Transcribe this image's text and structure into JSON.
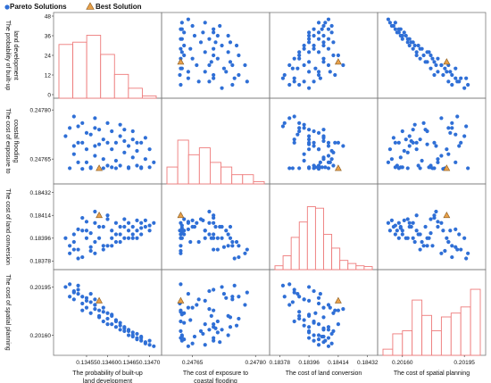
{
  "chart_data": {
    "type": "scatter",
    "legend": {
      "placement": "top-left",
      "entries": [
        {
          "name": "Pareto Solutions",
          "marker": "circle",
          "color": "#2f6fd6"
        },
        {
          "name": "Best Solution",
          "marker": "triangle",
          "color": "#e8a04a"
        }
      ]
    },
    "colors": {
      "pareto": "#2f6fd6",
      "best": "#e8a04a",
      "best_edge": "#8a5a1a",
      "hist_edge": "#ee7b7b",
      "grid": "#7a7a7a"
    },
    "variables": [
      {
        "key": "v1",
        "label_lines": [
          "The probability of built-up",
          "land development"
        ],
        "range": [
          0.13448,
          0.13472
        ],
        "ticks": [
          "0.13455",
          "0.13460",
          "0.13465",
          "0.13470"
        ],
        "tick_values": [
          0.13455,
          0.1346,
          0.13465,
          0.1347
        ]
      },
      {
        "key": "v2",
        "label_lines": [
          "The cost of exposure to",
          "coastal flooding"
        ],
        "range": [
          0.247585,
          0.247825
        ],
        "ticks": [
          "0.24765",
          "0.24780"
        ],
        "tick_values": [
          0.24765,
          0.2478
        ]
      },
      {
        "key": "v3",
        "label_lines": [
          "The cost of land conversion"
        ],
        "range": [
          0.18374,
          0.18436
        ],
        "ticks": [
          "0.18378",
          "0.18396",
          "0.18414",
          "0.18432"
        ],
        "tick_values": [
          0.18378,
          0.18396,
          0.18414,
          0.18432
        ]
      },
      {
        "key": "v4",
        "label_lines": [
          "The cost of spatial planning"
        ],
        "range": [
          0.20148,
          0.20205
        ],
        "ticks": [
          "0.20160",
          "0.20195"
        ],
        "tick_values": [
          0.2016,
          0.20195
        ]
      }
    ],
    "row_labels": [
      [
        "The probability of built-up",
        "land development"
      ],
      [
        "The cost of exposure to",
        "coastal flooding"
      ],
      [
        "The cost of land conversion"
      ],
      [
        "The cost of spatial planning"
      ]
    ],
    "y_ticks": [
      {
        "labels": [
          "0",
          "12",
          "24",
          "36",
          "48"
        ],
        "values": [
          0,
          12,
          24,
          36,
          48
        ],
        "range": [
          0,
          48
        ]
      },
      {
        "labels": [
          "0.24765",
          "0.24780"
        ],
        "values": [
          0.24765,
          0.2478
        ],
        "range": [
          0.247585,
          0.247825
        ]
      },
      {
        "labels": [
          "0.18378",
          "0.18396",
          "0.18414",
          "0.18432"
        ],
        "values": [
          0.18378,
          0.18396,
          0.18414,
          0.18432
        ],
        "range": [
          0.18374,
          0.18436
        ]
      },
      {
        "labels": [
          "0.20160",
          "0.20195"
        ],
        "values": [
          0.2016,
          0.20195
        ],
        "range": [
          0.20148,
          0.20205
        ]
      }
    ],
    "histograms": [
      {
        "variable": "v1",
        "relative_heights": [
          0.7,
          0.73,
          0.82,
          0.57,
          0.31,
          0.13,
          0.03
        ]
      },
      {
        "variable": "v2",
        "relative_heights": [
          0.22,
          0.57,
          0.38,
          0.47,
          0.28,
          0.22,
          0.12,
          0.12,
          0.03
        ]
      },
      {
        "variable": "v3",
        "relative_heights": [
          0.05,
          0.18,
          0.42,
          0.62,
          0.82,
          0.8,
          0.46,
          0.28,
          0.12,
          0.08,
          0.05,
          0.04
        ]
      },
      {
        "variable": "v4",
        "relative_heights": [
          0.08,
          0.28,
          0.32,
          0.72,
          0.52,
          0.32,
          0.5,
          0.55,
          0.63,
          0.86
        ]
      }
    ],
    "best_solution": {
      "v1": 0.13458,
      "v2": 0.247622,
      "v3": 0.18414,
      "v4": 0.20185
    },
    "pareto_points": [
      [
        0.1345,
        0.24772,
        0.18396,
        0.20195
      ],
      [
        0.13452,
        0.24769,
        0.18399,
        0.20192
      ],
      [
        0.13451,
        0.247745,
        0.1839,
        0.20188
      ],
      [
        0.13453,
        0.24764,
        0.18403,
        0.2019
      ],
      [
        0.13452,
        0.247665,
        0.18393,
        0.20186
      ],
      [
        0.13453,
        0.2477,
        0.18387,
        0.20193
      ],
      [
        0.13454,
        0.24762,
        0.18402,
        0.20183
      ],
      [
        0.13454,
        0.24776,
        0.18381,
        0.20188
      ],
      [
        0.13455,
        0.24768,
        0.18396,
        0.20185
      ],
      [
        0.13455,
        0.24764,
        0.18409,
        0.2018
      ],
      [
        0.13456,
        0.247725,
        0.18389,
        0.2019
      ],
      [
        0.13456,
        0.247625,
        0.184,
        0.20176
      ],
      [
        0.13457,
        0.24766,
        0.18408,
        0.20182
      ],
      [
        0.13457,
        0.247745,
        0.18393,
        0.20186
      ],
      [
        0.13458,
        0.247622,
        0.18414,
        0.20178
      ],
      [
        0.13458,
        0.247695,
        0.18396,
        0.20174
      ],
      [
        0.13459,
        0.24765,
        0.18405,
        0.2018
      ],
      [
        0.13459,
        0.24771,
        0.18387,
        0.2017
      ],
      [
        0.1346,
        0.24763,
        0.18411,
        0.20176
      ],
      [
        0.1346,
        0.24776,
        0.1839,
        0.20172
      ],
      [
        0.13461,
        0.24768,
        0.18402,
        0.20168
      ],
      [
        0.13461,
        0.247625,
        0.18396,
        0.20175
      ],
      [
        0.13462,
        0.2477,
        0.18408,
        0.20166
      ],
      [
        0.13462,
        0.247645,
        0.18393,
        0.20171
      ],
      [
        0.13463,
        0.24772,
        0.18405,
        0.20164
      ],
      [
        0.13463,
        0.24763,
        0.18399,
        0.20169
      ],
      [
        0.13464,
        0.24767,
        0.18411,
        0.20163
      ],
      [
        0.13464,
        0.24774,
        0.18396,
        0.20166
      ],
      [
        0.13465,
        0.247625,
        0.18402,
        0.2016
      ],
      [
        0.13465,
        0.24769,
        0.18408,
        0.20164
      ],
      [
        0.13466,
        0.247655,
        0.18405,
        0.20159
      ],
      [
        0.13466,
        0.24771,
        0.18396,
        0.20162
      ],
      [
        0.13467,
        0.24763,
        0.18402,
        0.20157
      ],
      [
        0.13467,
        0.247675,
        0.1841,
        0.20161
      ],
      [
        0.13468,
        0.2477,
        0.18399,
        0.20156
      ],
      [
        0.13468,
        0.247625,
        0.18404,
        0.20159
      ],
      [
        0.13469,
        0.24765,
        0.1841,
        0.20154
      ],
      [
        0.1347,
        0.24768,
        0.18402,
        0.20153
      ],
      [
        0.1347,
        0.247625,
        0.18406,
        0.20156
      ],
      [
        0.13471,
        0.24764,
        0.18408,
        0.20152
      ],
      [
        0.13451,
        0.247622,
        0.18384,
        0.20197
      ],
      [
        0.13453,
        0.24775,
        0.1838,
        0.20196
      ],
      [
        0.13456,
        0.247622,
        0.18386,
        0.20184
      ],
      [
        0.13459,
        0.247622,
        0.1839,
        0.20177
      ],
      [
        0.13462,
        0.247622,
        0.18399,
        0.2017
      ],
      [
        0.13465,
        0.247622,
        0.18396,
        0.20163
      ],
      [
        0.13468,
        0.247622,
        0.18408,
        0.20158
      ],
      [
        0.13454,
        0.2477,
        0.18412,
        0.20178
      ],
      [
        0.13457,
        0.247775,
        0.18384,
        0.20182
      ],
      [
        0.1346,
        0.2477,
        0.18414,
        0.20168
      ],
      [
        0.13463,
        0.247755,
        0.18393,
        0.20167
      ],
      [
        0.13466,
        0.247735,
        0.18399,
        0.2016
      ],
      [
        0.13452,
        0.24778,
        0.18387,
        0.20191
      ],
      [
        0.13455,
        0.24773,
        0.18402,
        0.20187
      ],
      [
        0.13458,
        0.24774,
        0.18405,
        0.20173
      ],
      [
        0.13461,
        0.247735,
        0.1839,
        0.20174
      ],
      [
        0.13464,
        0.247705,
        0.18405,
        0.20165
      ],
      [
        0.13467,
        0.2477,
        0.18396,
        0.20158
      ],
      [
        0.13469,
        0.247715,
        0.18405,
        0.20155
      ],
      [
        0.13457,
        0.24769,
        0.18417,
        0.20179
      ]
    ]
  }
}
